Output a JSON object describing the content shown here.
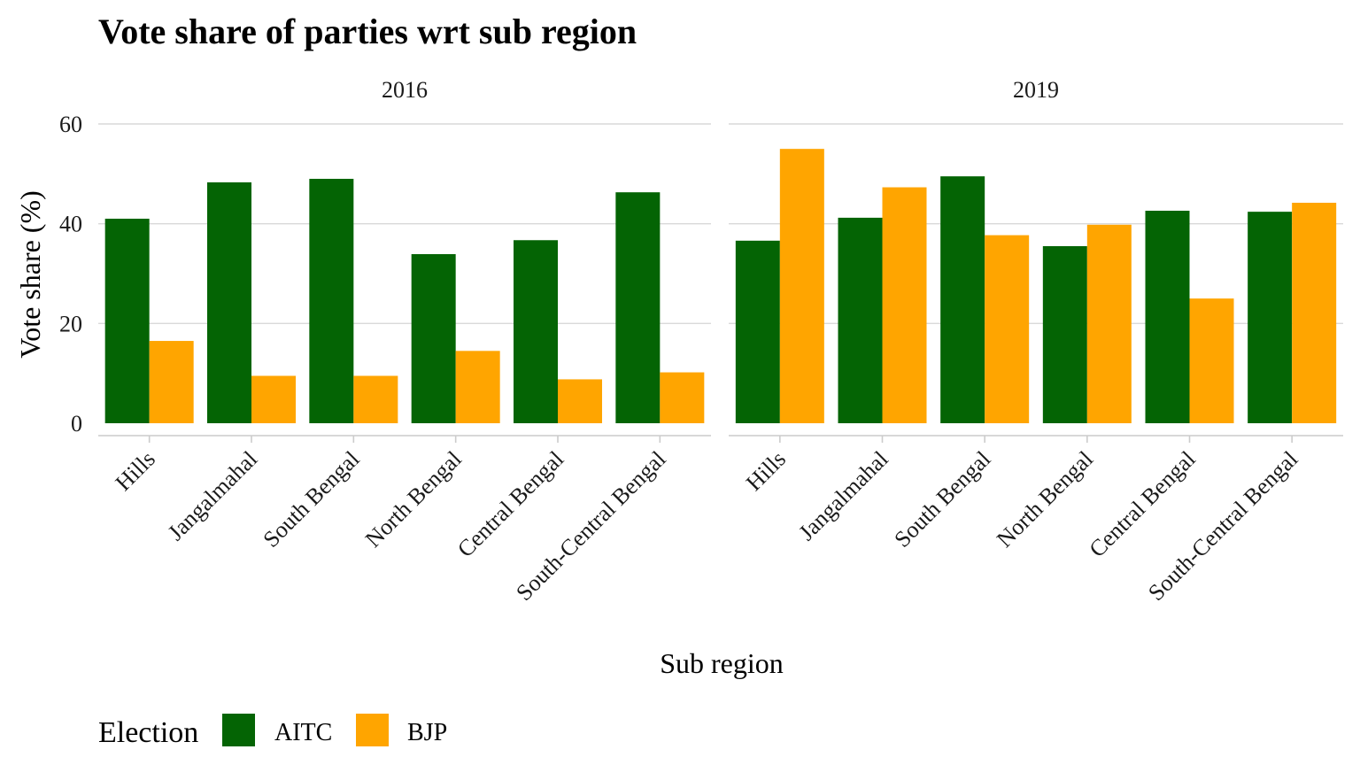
{
  "chart_data": {
    "type": "bar",
    "title": "Vote share  of parties wrt sub region",
    "xlabel": "Sub region",
    "ylabel": "Vote share (%)",
    "ylim": [
      0,
      60
    ],
    "yticks": [
      0,
      20,
      40,
      60
    ],
    "grid": true,
    "legend": {
      "title": "Election",
      "position": "bottom-left",
      "items": [
        {
          "label": "AITC",
          "color": "#046404"
        },
        {
          "label": "BJP",
          "color": "#FFA500"
        }
      ]
    },
    "categories": [
      "Hills",
      "Jangalmahal",
      "South Bengal",
      "North Bengal",
      "Central Bengal",
      "South-Central Bengal"
    ],
    "facets": [
      {
        "label": "2016",
        "series": [
          {
            "name": "AITC",
            "color": "#046404",
            "values": [
              41.0,
              48.3,
              49.0,
              33.9,
              36.7,
              46.3
            ]
          },
          {
            "name": "BJP",
            "color": "#FFA500",
            "values": [
              16.5,
              9.5,
              9.5,
              14.5,
              8.8,
              10.2
            ]
          }
        ]
      },
      {
        "label": "2019",
        "series": [
          {
            "name": "AITC",
            "color": "#046404",
            "values": [
              36.6,
              41.2,
              49.5,
              35.5,
              42.6,
              42.4
            ]
          },
          {
            "name": "BJP",
            "color": "#FFA500",
            "values": [
              55.0,
              47.3,
              37.7,
              39.8,
              25.0,
              44.2
            ]
          }
        ]
      }
    ]
  }
}
